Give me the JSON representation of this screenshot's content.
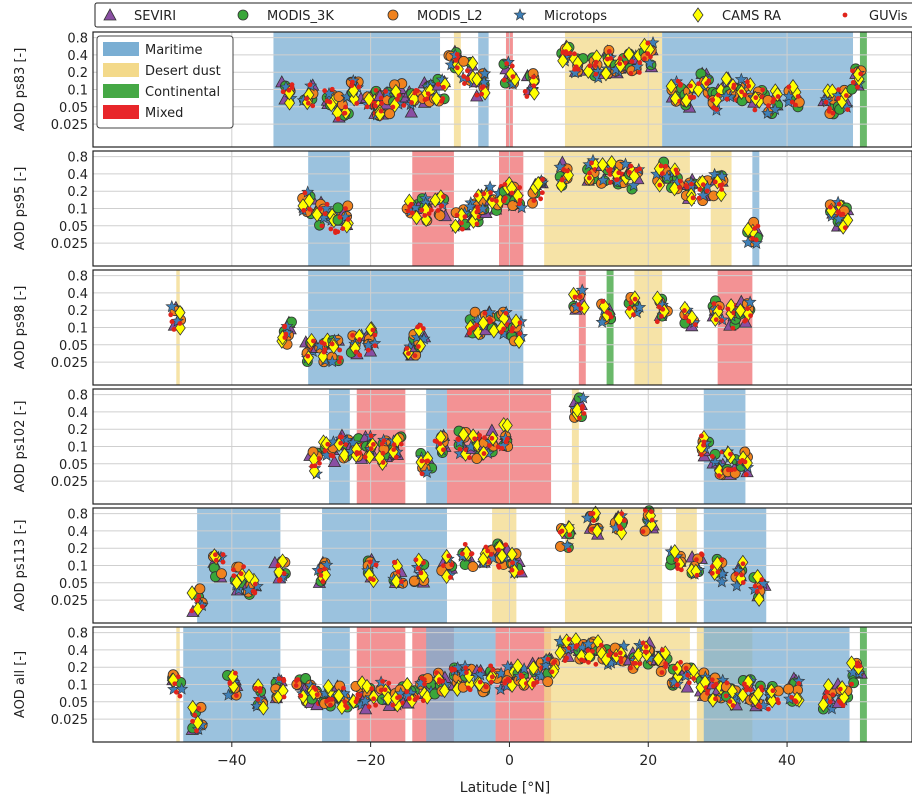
{
  "chart_data": {
    "type": "scatter",
    "xlabel": "Latitude [°N]",
    "xlim": [
      -60,
      58
    ],
    "xticks": [
      -40,
      -20,
      0,
      20,
      40
    ],
    "ytick_values": [
      0.025,
      0.05,
      0.1,
      0.2,
      0.4,
      0.8
    ],
    "ytick_labels": [
      "0.025",
      "0.05",
      "0.1",
      "0.2",
      "0.4",
      "0.8"
    ],
    "yscale": "log",
    "ylim": [
      0.01,
      1.0
    ],
    "grid": true,
    "legend": [
      {
        "name": "SEVIRI",
        "marker": "triangle",
        "color": "#8a4fa3"
      },
      {
        "name": "MODIS_3K",
        "marker": "circle",
        "color": "#3aa63a"
      },
      {
        "name": "MODIS_L2",
        "marker": "circle",
        "color": "#f0821e"
      },
      {
        "name": "Microtops",
        "marker": "star",
        "color": "#3f7fb6"
      },
      {
        "name": "CAMS RA",
        "marker": "diamond",
        "color": "#ffff00"
      },
      {
        "name": "GUVis",
        "marker": "dot",
        "color": "#e0241b"
      }
    ],
    "legend_placement": "top, outside",
    "band_legend": [
      {
        "name": "Maritime",
        "color": "#7aaed3"
      },
      {
        "name": "Desert dust",
        "color": "#f3d98a"
      },
      {
        "name": "Continental",
        "color": "#45a845"
      },
      {
        "name": "Mixed",
        "color": "#e8262a"
      }
    ],
    "band_legend_placement": "upper left of top panel",
    "panels": [
      {
        "ylabel": "AOD ps83 [-]",
        "bands": [
          {
            "type": "Maritime",
            "from": -34,
            "to": -10
          },
          {
            "type": "Desert dust",
            "from": -8,
            "to": -7
          },
          {
            "type": "Maritime",
            "from": -4.5,
            "to": -3
          },
          {
            "type": "Mixed",
            "from": -0.5,
            "to": 0.5
          },
          {
            "type": "Desert dust",
            "from": 8,
            "to": 22
          },
          {
            "type": "Maritime",
            "from": 22,
            "to": 49.5
          },
          {
            "type": "Continental",
            "from": 50.5,
            "to": 51.5
          }
        ],
        "clusters": [
          [
            -32,
            0.09
          ],
          [
            -29,
            0.08
          ],
          [
            -26,
            0.07
          ],
          [
            -24,
            0.05
          ],
          [
            -22,
            0.09
          ],
          [
            -20,
            0.06
          ],
          [
            -19,
            0.05
          ],
          [
            -18,
            0.06
          ],
          [
            -16,
            0.08
          ],
          [
            -14,
            0.06
          ],
          [
            -12,
            0.09
          ],
          [
            -10,
            0.1
          ],
          [
            -8,
            0.35
          ],
          [
            -6,
            0.2
          ],
          [
            -4,
            0.12
          ],
          [
            0,
            0.2
          ],
          [
            3,
            0.12
          ],
          [
            8,
            0.4
          ],
          [
            10,
            0.3
          ],
          [
            12,
            0.25
          ],
          [
            14,
            0.3
          ],
          [
            16,
            0.25
          ],
          [
            18,
            0.3
          ],
          [
            20,
            0.4
          ],
          [
            24,
            0.1
          ],
          [
            26,
            0.08
          ],
          [
            28,
            0.12
          ],
          [
            30,
            0.07
          ],
          [
            32,
            0.1
          ],
          [
            34,
            0.1
          ],
          [
            36,
            0.07
          ],
          [
            38,
            0.06
          ],
          [
            41,
            0.08
          ],
          [
            46,
            0.06
          ],
          [
            48,
            0.07
          ],
          [
            50,
            0.15
          ]
        ]
      },
      {
        "ylabel": "AOD ps95 [-]",
        "bands": [
          {
            "type": "Maritime",
            "from": -29,
            "to": -23
          },
          {
            "type": "Mixed",
            "from": -14,
            "to": -8
          },
          {
            "type": "Mixed",
            "from": -1.5,
            "to": 2
          },
          {
            "type": "Desert dust",
            "from": 5,
            "to": 26
          },
          {
            "type": "Desert dust",
            "from": 29,
            "to": 32
          },
          {
            "type": "Maritime",
            "from": 35,
            "to": 36
          }
        ],
        "clusters": [
          [
            -29,
            0.12
          ],
          [
            -27,
            0.08
          ],
          [
            -25,
            0.06
          ],
          [
            -24,
            0.07
          ],
          [
            -14,
            0.1
          ],
          [
            -12,
            0.1
          ],
          [
            -10,
            0.1
          ],
          [
            -7,
            0.07
          ],
          [
            -5,
            0.08
          ],
          [
            -4,
            0.12
          ],
          [
            -2,
            0.15
          ],
          [
            0,
            0.18
          ],
          [
            1,
            0.15
          ],
          [
            4,
            0.2
          ],
          [
            8,
            0.4
          ],
          [
            12,
            0.45
          ],
          [
            14,
            0.4
          ],
          [
            16,
            0.4
          ],
          [
            18,
            0.35
          ],
          [
            22,
            0.4
          ],
          [
            24,
            0.3
          ],
          [
            26,
            0.2
          ],
          [
            28,
            0.2
          ],
          [
            30,
            0.25
          ],
          [
            35,
            0.04
          ],
          [
            47,
            0.08
          ],
          [
            48,
            0.07
          ]
        ]
      },
      {
        "ylabel": "AOD ps98 [-]",
        "bands": [
          {
            "type": "Desert dust",
            "from": -48,
            "to": -47.5
          },
          {
            "type": "Maritime",
            "from": -29,
            "to": 2
          },
          {
            "type": "Mixed",
            "from": 10,
            "to": 11
          },
          {
            "type": "Continental",
            "from": 14,
            "to": 15
          },
          {
            "type": "Desert dust",
            "from": 18,
            "to": 22
          },
          {
            "type": "Mixed",
            "from": 30,
            "to": 35
          }
        ],
        "clusters": [
          [
            -48,
            0.15
          ],
          [
            -32,
            0.08
          ],
          [
            -29,
            0.04
          ],
          [
            -27,
            0.04
          ],
          [
            -25,
            0.04
          ],
          [
            -22,
            0.05
          ],
          [
            -20,
            0.06
          ],
          [
            -14,
            0.05
          ],
          [
            -13,
            0.07
          ],
          [
            -5,
            0.12
          ],
          [
            -3,
            0.13
          ],
          [
            -1,
            0.12
          ],
          [
            1,
            0.08
          ],
          [
            10,
            0.3
          ],
          [
            14,
            0.2
          ],
          [
            18,
            0.25
          ],
          [
            22,
            0.2
          ],
          [
            26,
            0.15
          ],
          [
            30,
            0.18
          ],
          [
            32,
            0.15
          ],
          [
            34,
            0.18
          ]
        ]
      },
      {
        "ylabel": "AOD ps102 [-]",
        "bands": [
          {
            "type": "Maritime",
            "from": -26,
            "to": -23
          },
          {
            "type": "Mixed",
            "from": -22,
            "to": -15
          },
          {
            "type": "Maritime",
            "from": -12,
            "to": -9
          },
          {
            "type": "Mixed",
            "from": -9,
            "to": 6
          },
          {
            "type": "Desert dust",
            "from": 9,
            "to": 10
          },
          {
            "type": "Maritime",
            "from": 28,
            "to": 34
          }
        ],
        "clusters": [
          [
            -28,
            0.05
          ],
          [
            -26,
            0.08
          ],
          [
            -24,
            0.1
          ],
          [
            -22,
            0.1
          ],
          [
            -20,
            0.1
          ],
          [
            -18,
            0.08
          ],
          [
            -16,
            0.1
          ],
          [
            -12,
            0.05
          ],
          [
            -10,
            0.12
          ],
          [
            -7,
            0.12
          ],
          [
            -5,
            0.1
          ],
          [
            -3,
            0.12
          ],
          [
            -1,
            0.15
          ],
          [
            10,
            0.5
          ],
          [
            28,
            0.1
          ],
          [
            30,
            0.05
          ],
          [
            32,
            0.05
          ],
          [
            34,
            0.05
          ]
        ]
      },
      {
        "ylabel": "AOD ps113 [-]",
        "bands": [
          {
            "type": "Maritime",
            "from": -45,
            "to": -33
          },
          {
            "type": "Maritime",
            "from": -27,
            "to": -9
          },
          {
            "type": "Desert dust",
            "from": -2.5,
            "to": 1
          },
          {
            "type": "Desert dust",
            "from": 8,
            "to": 22
          },
          {
            "type": "Desert dust",
            "from": 24,
            "to": 27
          },
          {
            "type": "Maritime",
            "from": 28,
            "to": 37
          }
        ],
        "clusters": [
          [
            -45,
            0.025
          ],
          [
            -42,
            0.1
          ],
          [
            -39,
            0.06
          ],
          [
            -37,
            0.05
          ],
          [
            -33,
            0.08
          ],
          [
            -27,
            0.08
          ],
          [
            -20,
            0.08
          ],
          [
            -16,
            0.08
          ],
          [
            -13,
            0.08
          ],
          [
            -9,
            0.1
          ],
          [
            -6,
            0.15
          ],
          [
            -3,
            0.15
          ],
          [
            -1,
            0.15
          ],
          [
            1,
            0.12
          ],
          [
            8,
            0.3
          ],
          [
            12,
            0.5
          ],
          [
            16,
            0.6
          ],
          [
            20,
            0.6
          ],
          [
            24,
            0.12
          ],
          [
            27,
            0.1
          ],
          [
            30,
            0.08
          ],
          [
            33,
            0.07
          ],
          [
            36,
            0.04
          ]
        ]
      },
      {
        "ylabel": "AOD all [-]",
        "bands": [
          {
            "type": "Desert dust",
            "from": -48,
            "to": -47.5
          },
          {
            "type": "Maritime",
            "from": -47,
            "to": -33
          },
          {
            "type": "Maritime",
            "from": -27,
            "to": -23
          },
          {
            "type": "Mixed",
            "from": -22,
            "to": -15
          },
          {
            "type": "Mixed",
            "from": -14,
            "to": -8
          },
          {
            "type": "Maritime",
            "from": -12,
            "to": -2
          },
          {
            "type": "Mixed",
            "from": -2,
            "to": 6
          },
          {
            "type": "Desert dust",
            "from": 5,
            "to": 26
          },
          {
            "type": "Desert dust",
            "from": 27,
            "to": 35
          },
          {
            "type": "Maritime",
            "from": 28,
            "to": 49
          },
          {
            "type": "Continental",
            "from": 50.5,
            "to": 51.5
          }
        ],
        "clusters": [
          [
            -48,
            0.1
          ],
          [
            -45,
            0.025
          ],
          [
            -40,
            0.1
          ],
          [
            -36,
            0.06
          ],
          [
            -33,
            0.08
          ],
          [
            -30,
            0.08
          ],
          [
            -28,
            0.07
          ],
          [
            -26,
            0.06
          ],
          [
            -24,
            0.06
          ],
          [
            -22,
            0.07
          ],
          [
            -20,
            0.06
          ],
          [
            -18,
            0.07
          ],
          [
            -16,
            0.07
          ],
          [
            -14,
            0.07
          ],
          [
            -12,
            0.08
          ],
          [
            -10,
            0.1
          ],
          [
            -8,
            0.12
          ],
          [
            -6,
            0.13
          ],
          [
            -4,
            0.12
          ],
          [
            -2,
            0.13
          ],
          [
            0,
            0.15
          ],
          [
            2,
            0.15
          ],
          [
            4,
            0.15
          ],
          [
            6,
            0.18
          ],
          [
            8,
            0.4
          ],
          [
            10,
            0.4
          ],
          [
            12,
            0.35
          ],
          [
            14,
            0.3
          ],
          [
            16,
            0.3
          ],
          [
            18,
            0.3
          ],
          [
            20,
            0.35
          ],
          [
            22,
            0.25
          ],
          [
            24,
            0.15
          ],
          [
            26,
            0.12
          ],
          [
            28,
            0.1
          ],
          [
            30,
            0.08
          ],
          [
            32,
            0.07
          ],
          [
            34,
            0.08
          ],
          [
            36,
            0.06
          ],
          [
            38,
            0.06
          ],
          [
            41,
            0.08
          ],
          [
            46,
            0.06
          ],
          [
            48,
            0.07
          ],
          [
            50,
            0.15
          ]
        ]
      }
    ]
  }
}
